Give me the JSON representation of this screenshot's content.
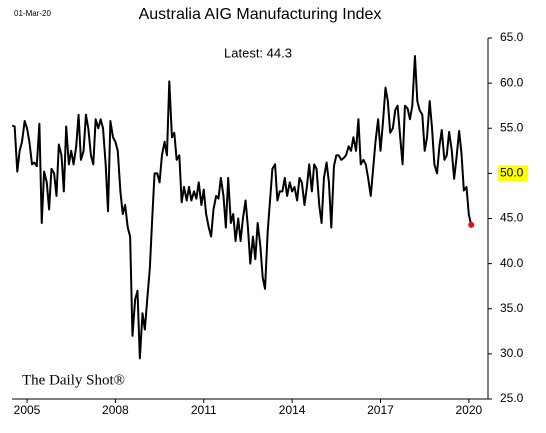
{
  "chart_data": {
    "type": "line",
    "title": "Australia AIG Manufacturing Index",
    "date_label": "01-Mar-20",
    "annotation": "Latest:  44.3",
    "source": "The Daily Shot®",
    "color": "#000000",
    "last_point_color": "#e8100f",
    "highlight_color": "#ffff00",
    "x": [
      2004.5,
      2004.58,
      2004.67,
      2004.75,
      2004.83,
      2004.92,
      2005,
      2005.08,
      2005.17,
      2005.25,
      2005.33,
      2005.42,
      2005.5,
      2005.58,
      2005.67,
      2005.75,
      2005.83,
      2005.92,
      2006,
      2006.08,
      2006.17,
      2006.25,
      2006.33,
      2006.42,
      2006.5,
      2006.58,
      2006.67,
      2006.75,
      2006.83,
      2006.92,
      2007,
      2007.08,
      2007.17,
      2007.25,
      2007.33,
      2007.42,
      2007.5,
      2007.58,
      2007.67,
      2007.75,
      2007.83,
      2007.92,
      2008,
      2008.08,
      2008.17,
      2008.25,
      2008.33,
      2008.42,
      2008.5,
      2008.58,
      2008.67,
      2008.75,
      2008.83,
      2008.92,
      2009,
      2009.08,
      2009.17,
      2009.25,
      2009.33,
      2009.42,
      2009.5,
      2009.58,
      2009.67,
      2009.75,
      2009.83,
      2009.92,
      2010,
      2010.08,
      2010.17,
      2010.25,
      2010.33,
      2010.42,
      2010.5,
      2010.58,
      2010.67,
      2010.75,
      2010.83,
      2010.92,
      2011,
      2011.08,
      2011.17,
      2011.25,
      2011.33,
      2011.42,
      2011.5,
      2011.58,
      2011.67,
      2011.75,
      2011.83,
      2011.92,
      2012,
      2012.08,
      2012.17,
      2012.25,
      2012.33,
      2012.42,
      2012.5,
      2012.58,
      2012.67,
      2012.75,
      2012.83,
      2012.92,
      2013,
      2013.08,
      2013.17,
      2013.25,
      2013.33,
      2013.42,
      2013.5,
      2013.58,
      2013.67,
      2013.75,
      2013.83,
      2013.92,
      2014,
      2014.08,
      2014.17,
      2014.25,
      2014.33,
      2014.42,
      2014.5,
      2014.58,
      2014.67,
      2014.75,
      2014.83,
      2014.92,
      2015,
      2015.08,
      2015.17,
      2015.25,
      2015.33,
      2015.42,
      2015.5,
      2015.58,
      2015.67,
      2015.75,
      2015.83,
      2015.92,
      2016,
      2016.08,
      2016.17,
      2016.25,
      2016.33,
      2016.42,
      2016.5,
      2016.58,
      2016.67,
      2016.75,
      2016.83,
      2016.92,
      2017,
      2017.08,
      2017.17,
      2017.25,
      2017.33,
      2017.42,
      2017.5,
      2017.58,
      2017.67,
      2017.75,
      2017.83,
      2017.92,
      2018,
      2018.08,
      2018.17,
      2018.25,
      2018.33,
      2018.42,
      2018.5,
      2018.58,
      2018.67,
      2018.75,
      2018.83,
      2018.92,
      2019,
      2019.08,
      2019.17,
      2019.25,
      2019.33,
      2019.42,
      2019.5,
      2019.58,
      2019.67,
      2019.75,
      2019.83,
      2019.92,
      2020,
      2020.08
    ],
    "values": [
      55.3,
      55.2,
      50.2,
      52.5,
      53.5,
      55.8,
      55.0,
      53.5,
      51.0,
      51.2,
      50.8,
      55.5,
      44.5,
      50.2,
      49.0,
      46.0,
      50.5,
      50.0,
      47.5,
      53.2,
      52.0,
      48.0,
      55.2,
      51.0,
      52.5,
      51.0,
      53.0,
      56.5,
      51.5,
      52.5,
      56.5,
      55.0,
      52.0,
      51.0,
      56.0,
      55.0,
      56.0,
      55.0,
      51.0,
      45.8,
      55.8,
      54.0,
      53.5,
      52.5,
      48.0,
      45.5,
      46.5,
      44.0,
      43.0,
      32.0,
      36.0,
      37.0,
      29.5,
      34.5,
      32.7,
      36.0,
      39.5,
      45.0,
      50.0,
      50.0,
      49.0,
      52.0,
      53.5,
      52.0,
      60.2,
      54.0,
      54.5,
      51.5,
      52.0,
      46.8,
      48.5,
      47.0,
      48.5,
      47.0,
      48.0,
      47.2,
      49.0,
      46.5,
      48.2,
      45.5,
      44.0,
      43.0,
      46.0,
      47.5,
      47.2,
      49.5,
      47.5,
      44.0,
      49.5,
      44.5,
      45.5,
      42.5,
      45.0,
      42.5,
      45.0,
      47.0,
      44.0,
      40.0,
      43.0,
      40.5,
      44.5,
      42.0,
      38.5,
      37.2,
      43.5,
      47.0,
      50.5,
      51.0,
      47.0,
      48.0,
      48.0,
      49.5,
      47.5,
      49.0,
      48.0,
      48.5,
      47.0,
      49.5,
      49.0,
      46.5,
      48.5,
      51.0,
      48.0,
      51.0,
      50.5,
      46.5,
      44.5,
      49.5,
      51.2,
      49.0,
      44.0,
      50.8,
      52.0,
      52.0,
      51.5,
      51.7,
      52.0,
      53.0,
      52.5,
      54.0,
      52.5,
      56.0,
      51.0,
      51.5,
      51.0,
      49.5,
      47.5,
      50.5,
      53.5,
      56.0,
      52.5,
      55.5,
      59.5,
      58.0,
      54.5,
      55.0,
      57.0,
      57.5,
      54.0,
      51.0,
      57.5,
      57.2,
      56.0,
      57.5,
      63.0,
      58.0,
      57.0,
      56.5,
      52.5,
      54.0,
      58.0,
      55.0,
      51.0,
      50.0,
      53.0,
      54.8,
      51.5,
      52.0,
      54.6,
      52.5,
      49.4,
      51.7,
      54.7,
      52.2,
      48.1,
      48.5,
      45.4,
      44.3
    ],
    "xlim": [
      2004.49,
      2020.65
    ],
    "xticks": [
      2005,
      2008,
      2011,
      2014,
      2017,
      2020
    ],
    "ylim": [
      25,
      65
    ],
    "yticks": [
      {
        "value": 25,
        "label": "25.0"
      },
      {
        "value": 30,
        "label": "30.0"
      },
      {
        "value": 35,
        "label": "35.0"
      },
      {
        "value": 40,
        "label": "40.0"
      },
      {
        "value": 45,
        "label": "45.0"
      },
      {
        "value": 50,
        "label": "50.0",
        "highlight": true
      },
      {
        "value": 55,
        "label": "55.0"
      },
      {
        "value": 60,
        "label": "60.0"
      },
      {
        "value": 65,
        "label": "65.0"
      }
    ]
  }
}
